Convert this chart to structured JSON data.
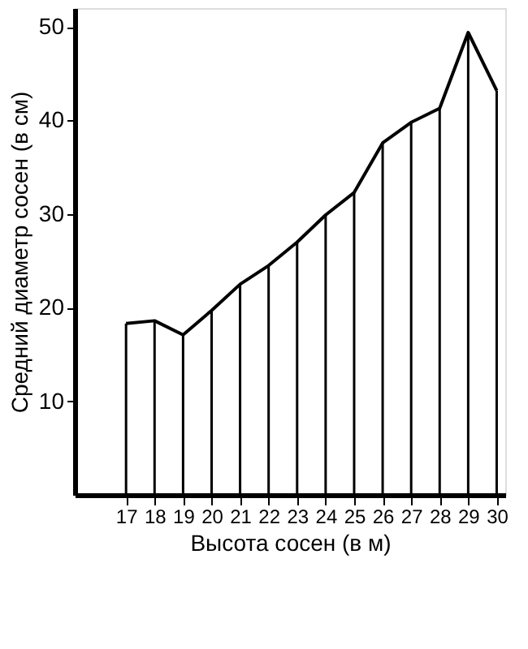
{
  "chart_data": {
    "type": "line",
    "xlabel": "Высота сосен (в м)",
    "ylabel": "Средний диаметр сосен (в см)",
    "x": [
      17,
      18,
      19,
      20,
      21,
      22,
      23,
      24,
      25,
      26,
      27,
      28,
      29,
      30
    ],
    "series": [
      {
        "type": "bar",
        "color": "#000000",
        "values": [
          18.3,
          18.6,
          17.1,
          19.7,
          22.5,
          24.5,
          27,
          29.9,
          32.3,
          37.6,
          39.8,
          41.3,
          49.4,
          43.2
        ]
      },
      {
        "color": "#000000",
        "values": [
          18.3,
          18.6,
          17.1,
          19.7,
          22.5,
          24.5,
          27,
          29.9,
          32.3,
          37.6,
          39.8,
          41.3,
          49.4,
          43.2
        ]
      }
    ],
    "xlim": [
      15.2,
      30.3
    ],
    "xticks": [
      17,
      18,
      19,
      20,
      21,
      22,
      23,
      24,
      25,
      26,
      27,
      28,
      29,
      30
    ],
    "ylim": [
      0,
      52
    ],
    "yticks": [
      10,
      20,
      30,
      40,
      50
    ],
    "grid": false,
    "marker": "none",
    "line_style": "solid"
  }
}
